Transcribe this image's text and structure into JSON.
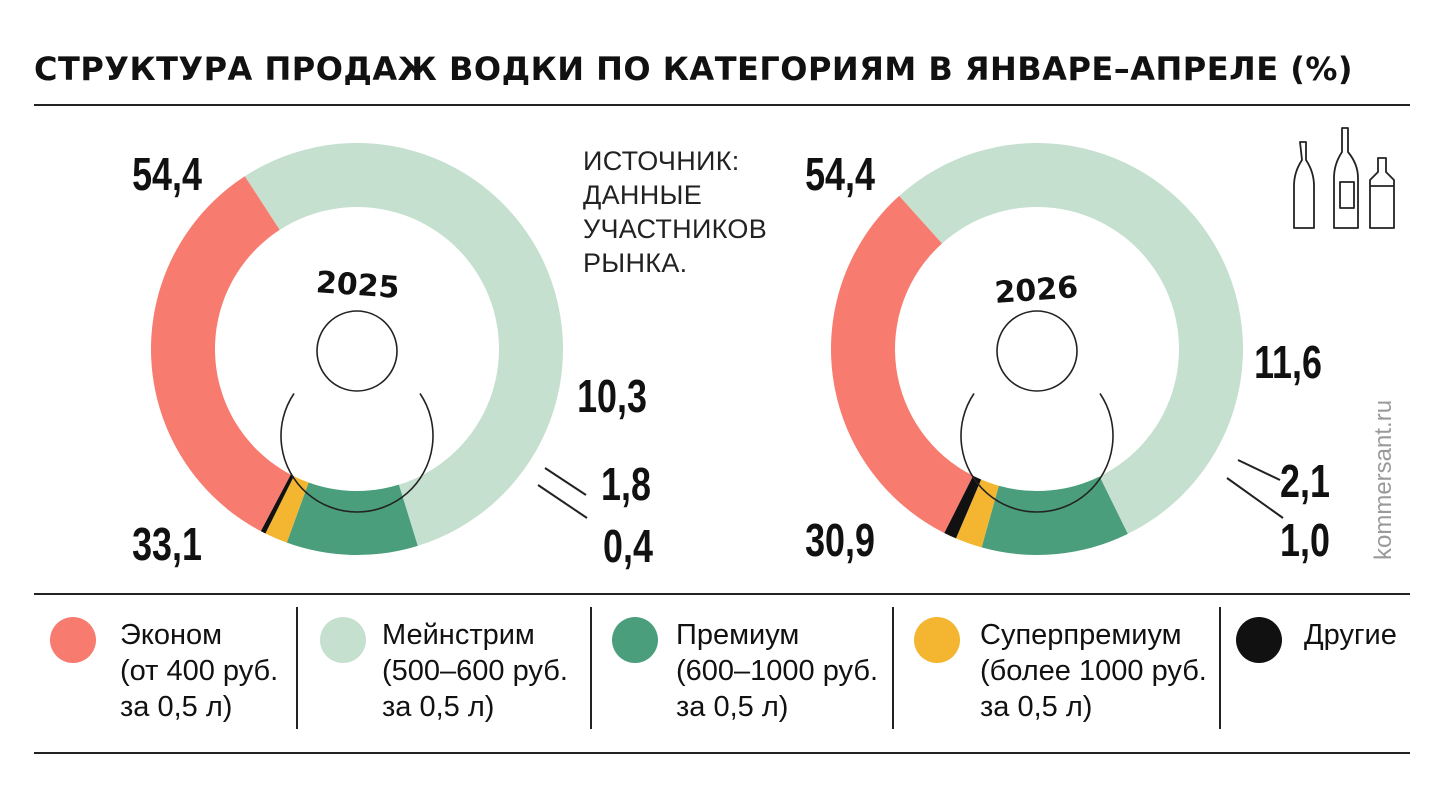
{
  "title": "СТРУКТУРА ПРОДАЖ ВОДКИ ПО КАТЕГОРИЯМ В ЯНВАРЕ–АПРЕЛЕ (%)",
  "source_lines": [
    "ИСТОЧНИК:",
    "ДАННЫЕ",
    "УЧАСТНИКОВ",
    "РЫНКА."
  ],
  "watermark": "kommersant.ru",
  "colors": {
    "econom": "#F77B6E",
    "mainstream": "#C5E0CF",
    "premium": "#4A9E7C",
    "superpremium": "#F4B630",
    "other": "#111111"
  },
  "legend": [
    {
      "key": "econom",
      "lines": [
        "Эконом",
        "(от 400 руб.",
        "за 0,5 л)"
      ]
    },
    {
      "key": "mainstream",
      "lines": [
        "Мейнстрим",
        "(500–600 руб.",
        "за 0,5 л)"
      ]
    },
    {
      "key": "premium",
      "lines": [
        "Премиум",
        "(600–1000 руб.",
        "за 0,5 л)"
      ]
    },
    {
      "key": "superpremium",
      "lines": [
        "Суперпремиум",
        "(более 1000 руб.",
        "за 0,5 л)"
      ]
    },
    {
      "key": "other",
      "lines": [
        "Другие"
      ]
    }
  ],
  "icons": [
    "bottles-icon",
    "year-ring-icon"
  ],
  "chart_data": [
    {
      "type": "pie",
      "donut": true,
      "center_label": "2025",
      "categories": [
        "Мейнстрим",
        "Премиум",
        "Суперпремиум",
        "Другие",
        "Эконом"
      ],
      "keys": [
        "mainstream",
        "premium",
        "superpremium",
        "other",
        "econom"
      ],
      "values": [
        54.4,
        10.3,
        1.8,
        0.4,
        33.1
      ],
      "labels": [
        "54,4",
        "10,3",
        "1,8",
        "0,4",
        "33,1"
      ]
    },
    {
      "type": "pie",
      "donut": true,
      "center_label": "2026",
      "categories": [
        "Мейнстрим",
        "Премиум",
        "Суперпремиум",
        "Другие",
        "Эконом"
      ],
      "keys": [
        "mainstream",
        "premium",
        "superpremium",
        "other",
        "econom"
      ],
      "values": [
        54.4,
        11.6,
        2.1,
        1.0,
        30.9
      ],
      "labels": [
        "54,4",
        "11,6",
        "2,1",
        "1,0",
        "30,9"
      ]
    }
  ]
}
